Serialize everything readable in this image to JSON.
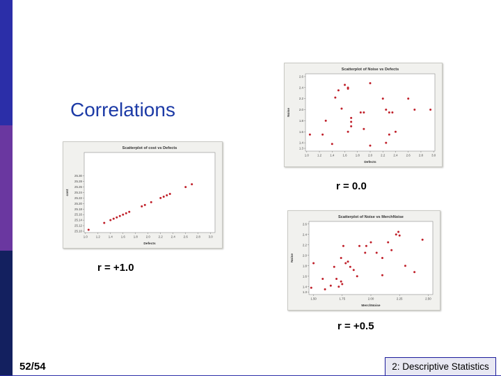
{
  "slide": {
    "title": "Correlations",
    "page": "52/54",
    "footer": "2: Descriptive Statistics",
    "accent_color": "#1c3aa6",
    "point_color": "#c0202a"
  },
  "chart_data": [
    {
      "id": "cost-vs-defects",
      "type": "scatter",
      "title": "Scatterplot of cost vs Defects",
      "xlabel": "Defects",
      "ylabel": "cost",
      "caption": "r = +1.0",
      "xlim": [
        0.98,
        3.07
      ],
      "ylim": [
        25.095,
        25.385
      ],
      "xticks": [
        "1.0",
        "1.2",
        "1.4",
        "1.6",
        "1.8",
        "2.0",
        "2.2",
        "2.4",
        "2.6",
        "2.8",
        "3.0"
      ],
      "xtick_values": [
        1.0,
        1.2,
        1.4,
        1.6,
        1.8,
        2.0,
        2.2,
        2.4,
        2.6,
        2.8,
        3.0
      ],
      "yticks": [
        "25.10",
        "25.12",
        "25.14",
        "25.16",
        "25.18",
        "25.20",
        "25.22",
        "25.24",
        "25.26",
        "25.28",
        "25.30"
      ],
      "ytick_values": [
        25.1,
        25.12,
        25.14,
        25.16,
        25.18,
        25.2,
        25.22,
        25.24,
        25.26,
        25.28,
        25.3
      ],
      "points": [
        [
          1.05,
          25.105
        ],
        [
          1.3,
          25.13
        ],
        [
          1.4,
          25.14
        ],
        [
          1.45,
          25.145
        ],
        [
          1.5,
          25.15
        ],
        [
          1.55,
          25.155
        ],
        [
          1.6,
          25.16
        ],
        [
          1.65,
          25.165
        ],
        [
          1.7,
          25.17
        ],
        [
          1.9,
          25.19
        ],
        [
          1.95,
          25.195
        ],
        [
          2.05,
          25.205
        ],
        [
          2.2,
          25.22
        ],
        [
          2.25,
          25.225
        ],
        [
          2.3,
          25.23
        ],
        [
          2.35,
          25.235
        ],
        [
          2.6,
          25.26
        ],
        [
          2.7,
          25.27
        ]
      ]
    },
    {
      "id": "noise-vs-defects",
      "type": "scatter",
      "title": "Scatterplot of Noise vs Defects",
      "xlabel": "Defects",
      "ylabel": "Noise",
      "caption": "r = 0.0",
      "xlim": [
        0.98,
        3.02
      ],
      "ylim": [
        1.25,
        2.65
      ],
      "xticks": [
        "1.0",
        "1.2",
        "1.4",
        "1.6",
        "1.8",
        "2.0",
        "2.2",
        "2.4",
        "2.6",
        "2.8",
        "3.0"
      ],
      "xtick_values": [
        1.0,
        1.2,
        1.4,
        1.6,
        1.8,
        2.0,
        2.2,
        2.4,
        2.6,
        2.8,
        3.0
      ],
      "yticks": [
        "1.3",
        "1.4",
        "1.6",
        "1.8",
        "2.0",
        "2.2",
        "2.4",
        "2.6"
      ],
      "ytick_values": [
        1.3,
        1.4,
        1.6,
        1.8,
        2.0,
        2.2,
        2.4,
        2.6
      ],
      "points": [
        [
          1.05,
          1.55
        ],
        [
          1.25,
          1.55
        ],
        [
          1.4,
          1.38
        ],
        [
          1.45,
          2.22
        ],
        [
          1.5,
          2.35
        ],
        [
          1.6,
          2.45
        ],
        [
          1.65,
          2.4
        ],
        [
          1.65,
          2.38
        ],
        [
          1.55,
          2.02
        ],
        [
          1.65,
          1.6
        ],
        [
          1.7,
          1.78
        ],
        [
          1.7,
          1.7
        ],
        [
          1.7,
          1.85
        ],
        [
          1.85,
          1.95
        ],
        [
          1.9,
          1.95
        ],
        [
          1.9,
          1.65
        ],
        [
          2.0,
          2.48
        ],
        [
          2.0,
          1.35
        ],
        [
          2.2,
          2.2
        ],
        [
          2.25,
          2.0
        ],
        [
          2.3,
          1.95
        ],
        [
          2.35,
          1.95
        ],
        [
          2.25,
          1.4
        ],
        [
          2.3,
          1.55
        ],
        [
          2.4,
          1.6
        ],
        [
          2.6,
          2.2
        ],
        [
          2.7,
          2.0
        ],
        [
          2.95,
          2.0
        ],
        [
          1.3,
          1.8
        ]
      ]
    },
    {
      "id": "noise-vs-merchnoise",
      "type": "scatter",
      "title": "Scatterplot of Noise vs MerchNoise",
      "xlabel": "MerchNoise",
      "ylabel": "Noise",
      "caption": "r = +0.5",
      "xlim": [
        1.46,
        2.54
      ],
      "ylim": [
        1.25,
        2.65
      ],
      "xticks": [
        "1.50",
        "1.75",
        "2.00",
        "2.25",
        "2.50"
      ],
      "xtick_values": [
        1.5,
        1.75,
        2.0,
        2.25,
        2.5
      ],
      "yticks": [
        "1.3",
        "1.4",
        "1.6",
        "1.8",
        "2.0",
        "2.2",
        "2.4",
        "2.6"
      ],
      "ytick_values": [
        1.3,
        1.4,
        1.6,
        1.8,
        2.0,
        2.2,
        2.4,
        2.6
      ],
      "points": [
        [
          1.48,
          1.38
        ],
        [
          1.5,
          1.85
        ],
        [
          1.58,
          1.55
        ],
        [
          1.6,
          1.35
        ],
        [
          1.65,
          1.42
        ],
        [
          1.68,
          1.78
        ],
        [
          1.7,
          1.55
        ],
        [
          1.72,
          1.4
        ],
        [
          1.74,
          1.5
        ],
        [
          1.75,
          1.45
        ],
        [
          1.74,
          1.95
        ],
        [
          1.78,
          1.85
        ],
        [
          1.8,
          1.88
        ],
        [
          1.82,
          1.78
        ],
        [
          1.85,
          1.72
        ],
        [
          1.88,
          1.6
        ],
        [
          1.9,
          2.18
        ],
        [
          1.95,
          2.05
        ],
        [
          1.96,
          2.18
        ],
        [
          2.0,
          2.25
        ],
        [
          2.05,
          2.05
        ],
        [
          2.1,
          1.95
        ],
        [
          2.1,
          1.62
        ],
        [
          2.15,
          2.25
        ],
        [
          2.18,
          2.1
        ],
        [
          2.22,
          2.4
        ],
        [
          2.24,
          2.45
        ],
        [
          2.25,
          2.38
        ],
        [
          2.3,
          1.8
        ],
        [
          2.38,
          1.68
        ],
        [
          2.45,
          2.3
        ],
        [
          1.76,
          2.18
        ]
      ]
    }
  ]
}
